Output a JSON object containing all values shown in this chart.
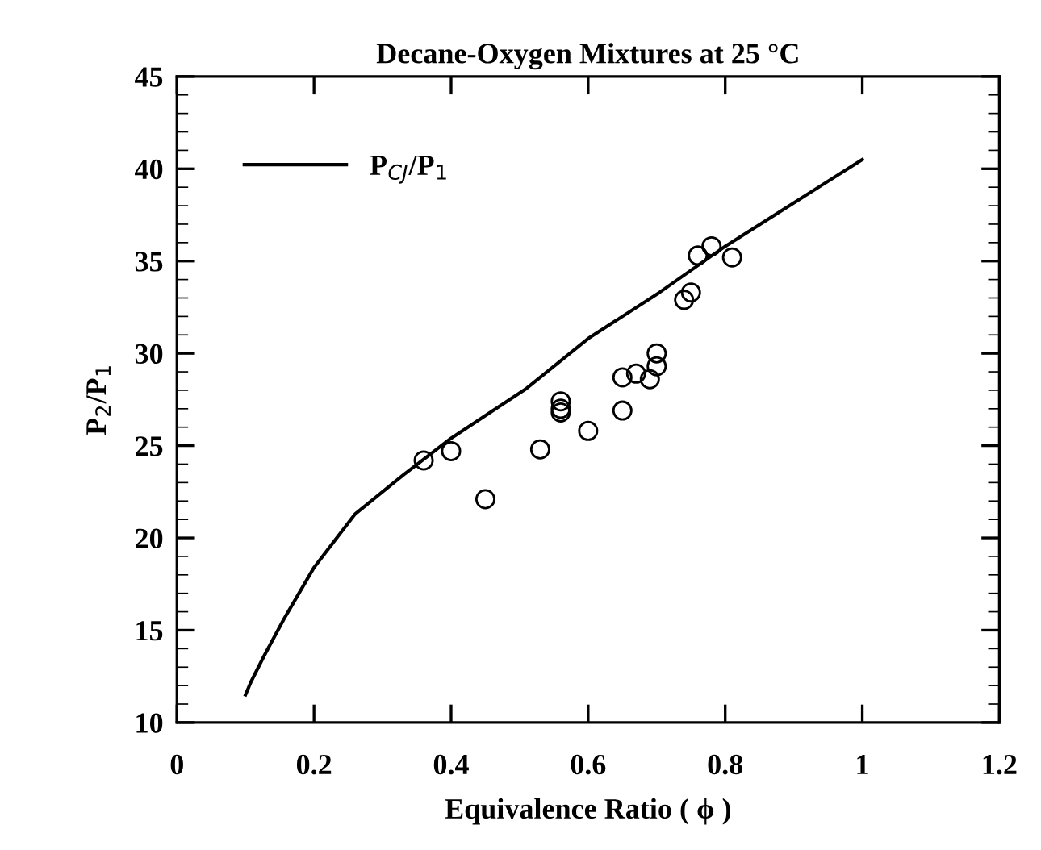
{
  "chart_data": {
    "type": "scatter",
    "title": "Decane-Oxygen Mixtures at 25 °C",
    "xlabel": "Equivalence Ratio ( ϕ )",
    "ylabel": "P$_{2}$/P$_{1}$",
    "xlim": [
      0,
      1.2
    ],
    "ylim": [
      10,
      45
    ],
    "xticks": [
      0,
      0.2,
      0.4,
      0.6,
      0.8,
      1,
      1.2
    ],
    "yticks": [
      10,
      15,
      20,
      25,
      30,
      35,
      40,
      45
    ],
    "grid": false,
    "legend": "top left",
    "series": [
      {
        "name": "P$_{CJ}$/P$_{1}$",
        "type": "line",
        "color": "#000000",
        "marker": "none",
        "line_style": "solid",
        "x": [
          0.1,
          0.108,
          0.127,
          0.156,
          0.2,
          0.26,
          0.33,
          0.4,
          0.51,
          0.6,
          0.704,
          0.8,
          1.0
        ],
        "values": [
          11.5,
          12.2,
          13.6,
          15.6,
          18.4,
          21.3,
          23.4,
          25.4,
          28.1,
          30.8,
          33.3,
          35.8,
          40.5
        ]
      },
      {
        "color": "#000000",
        "marker": "circle",
        "x": [
          0.36,
          0.4,
          0.45,
          0.53,
          0.56,
          0.56,
          0.56,
          0.6,
          0.65,
          0.65,
          0.67,
          0.69,
          0.7,
          0.7,
          0.74,
          0.75,
          0.76,
          0.78,
          0.81
        ],
        "values": [
          24.2,
          24.7,
          22.1,
          24.8,
          27.4,
          27.0,
          26.8,
          25.8,
          28.7,
          26.9,
          28.9,
          28.6,
          29.3,
          30.0,
          32.9,
          33.3,
          35.3,
          35.8,
          35.2
        ]
      }
    ]
  }
}
